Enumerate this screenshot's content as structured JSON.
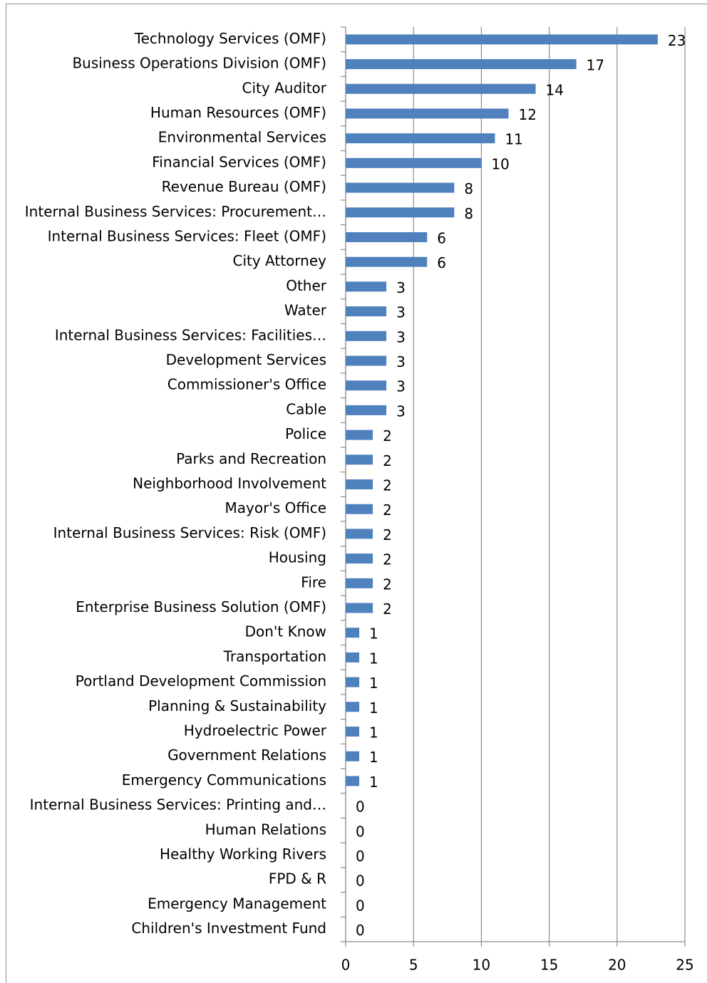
{
  "chart_data": {
    "type": "bar",
    "orientation": "horizontal",
    "categories": [
      "Technology Services (OMF)",
      "Business Operations Division (OMF)",
      "City Auditor",
      "Human Resources (OMF)",
      "Environmental Services",
      "Financial Services (OMF)",
      "Revenue Bureau (OMF)",
      "Internal Business Services: Procurement…",
      "Internal Business Services: Fleet (OMF)",
      "City Attorney",
      "Other",
      "Water",
      "Internal Business Services: Facilities…",
      "Development Services",
      "Commissioner's Office",
      "Cable",
      "Police",
      "Parks and Recreation",
      "Neighborhood Involvement",
      "Mayor's Office",
      "Internal Business Services: Risk (OMF)",
      "Housing",
      "Fire",
      "Enterprise Business Solution (OMF)",
      "Don't Know",
      "Transportation",
      "Portland Development Commission",
      "Planning & Sustainability",
      "Hydroelectric Power",
      "Government Relations",
      "Emergency Communications",
      "Internal Business Services: Printing and…",
      "Human Relations",
      "Healthy Working Rivers",
      "FPD & R",
      "Emergency Management",
      "Children's Investment Fund"
    ],
    "values": [
      23,
      17,
      14,
      12,
      11,
      10,
      8,
      8,
      6,
      6,
      3,
      3,
      3,
      3,
      3,
      3,
      2,
      2,
      2,
      2,
      2,
      2,
      2,
      2,
      1,
      1,
      1,
      1,
      1,
      1,
      1,
      0,
      0,
      0,
      0,
      0,
      0
    ],
    "color": "#4f81bd",
    "xlim": [
      0,
      25
    ],
    "xticks": [
      0,
      5,
      10,
      15,
      20,
      25
    ],
    "grid": true
  }
}
